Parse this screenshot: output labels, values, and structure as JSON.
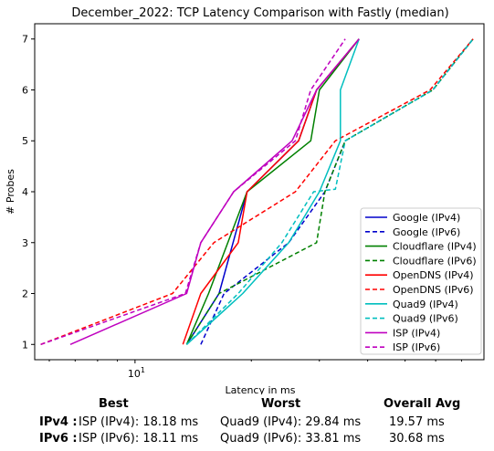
{
  "chart_data": {
    "type": "line",
    "title": "December_2022: TCP Latency Comparison with Fastly (median)",
    "xlabel": "Latency in ms",
    "ylabel": "# Probes",
    "xscale": "log",
    "xlim": [
      5.5,
      80
    ],
    "ylim": [
      0.7,
      7.3
    ],
    "xticks": [
      {
        "value": 10,
        "label": "10^1"
      }
    ],
    "yticks": [
      1,
      2,
      3,
      4,
      5,
      6,
      7
    ],
    "legend_position": "lower right",
    "series": [
      {
        "name": "Google (IPv4)",
        "color": "#0000cc",
        "dash": "solid",
        "points": [
          [
            13.6,
            1
          ],
          [
            16.5,
            2
          ],
          [
            19.5,
            4
          ],
          [
            26.5,
            5
          ],
          [
            29.5,
            6
          ],
          [
            38,
            7
          ]
        ]
      },
      {
        "name": "Google (IPv6)",
        "color": "#0000cc",
        "dash": "dashed",
        "points": [
          [
            14.8,
            1
          ],
          [
            17,
            2
          ],
          [
            25,
            3
          ],
          [
            31,
            4
          ],
          [
            35,
            5
          ],
          [
            59,
            6
          ],
          [
            75,
            7
          ]
        ]
      },
      {
        "name": "Cloudflare (IPv4)",
        "color": "#008000",
        "dash": "solid",
        "points": [
          [
            13.6,
            1
          ],
          [
            15.5,
            2
          ],
          [
            19.5,
            4
          ],
          [
            28.5,
            5
          ],
          [
            30,
            6
          ],
          [
            38,
            7
          ]
        ]
      },
      {
        "name": "Cloudflare (IPv6)",
        "color": "#008000",
        "dash": "dashed",
        "points": [
          [
            13.6,
            1
          ],
          [
            16.5,
            2
          ],
          [
            29.5,
            3
          ],
          [
            31,
            4
          ],
          [
            35,
            5
          ],
          [
            59,
            6
          ],
          [
            75,
            7
          ]
        ]
      },
      {
        "name": "OpenDNS (IPv4)",
        "color": "#ff0000",
        "dash": "solid",
        "points": [
          [
            13.3,
            1
          ],
          [
            14.8,
            2
          ],
          [
            18.5,
            3
          ],
          [
            19.5,
            4
          ],
          [
            26.5,
            5
          ],
          [
            29.5,
            6
          ],
          [
            38,
            7
          ]
        ]
      },
      {
        "name": "OpenDNS (IPv6)",
        "color": "#ff0000",
        "dash": "dashed",
        "points": [
          [
            5.7,
            1
          ],
          [
            12.5,
            2
          ],
          [
            16,
            3
          ],
          [
            26,
            4
          ],
          [
            33,
            5
          ],
          [
            58,
            6
          ],
          [
            75,
            7
          ]
        ]
      },
      {
        "name": "Quad9 (IPv4)",
        "color": "#00bfbf",
        "dash": "solid",
        "points": [
          [
            13.6,
            1
          ],
          [
            19,
            2
          ],
          [
            25,
            3
          ],
          [
            30,
            4
          ],
          [
            34,
            5
          ],
          [
            34,
            6
          ],
          [
            38,
            7
          ]
        ]
      },
      {
        "name": "Quad9 (IPv6)",
        "color": "#00bfbf",
        "dash": "dashed",
        "points": [
          [
            13.6,
            1
          ],
          [
            18.5,
            2
          ],
          [
            24,
            3
          ],
          [
            29,
            4
          ],
          [
            33,
            4.05
          ],
          [
            35,
            5
          ],
          [
            59,
            6
          ],
          [
            75,
            7
          ]
        ]
      },
      {
        "name": "ISP (IPv4)",
        "color": "#bf00bf",
        "dash": "solid",
        "points": [
          [
            6.8,
            1
          ],
          [
            13.6,
            2
          ],
          [
            14.8,
            3
          ],
          [
            18,
            4
          ],
          [
            25.5,
            5
          ],
          [
            29.5,
            6
          ],
          [
            38,
            7
          ]
        ]
      },
      {
        "name": "ISP (IPv6)",
        "color": "#bf00bf",
        "dash": "dashed",
        "points": [
          [
            5.7,
            1
          ],
          [
            13.5,
            2
          ],
          [
            14.8,
            3
          ],
          [
            18,
            4
          ],
          [
            26,
            5
          ],
          [
            28.5,
            6
          ],
          [
            35,
            7
          ]
        ]
      }
    ]
  },
  "summary": {
    "headers": {
      "best": "Best",
      "worst": "Worst",
      "overall": "Overall Avg"
    },
    "rows": [
      {
        "label": "IPv4 :",
        "best": "ISP (IPv4): 18.18 ms",
        "worst": "Quad9 (IPv4): 29.84 ms",
        "overall": "19.57 ms"
      },
      {
        "label": "IPv6 :",
        "best": "ISP (IPv6): 18.11 ms",
        "worst": "Quad9 (IPv6): 33.81 ms",
        "overall": "30.68 ms"
      }
    ]
  }
}
